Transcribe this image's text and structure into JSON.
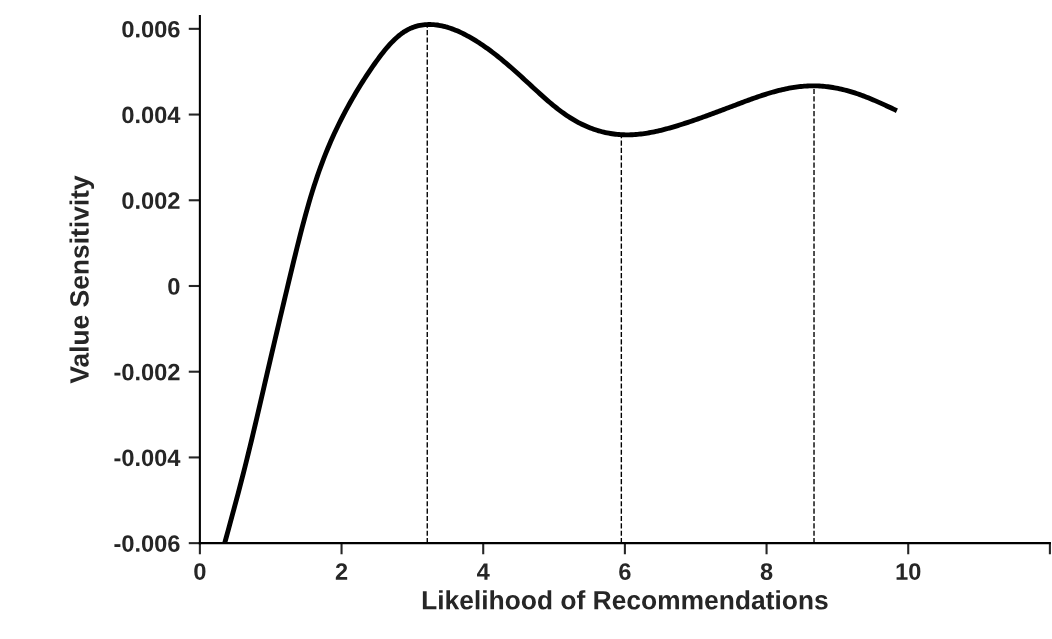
{
  "chart_data": {
    "type": "line",
    "xlabel": "Likelihood of Recommendations",
    "ylabel": "Value Sensitivity",
    "x": [
      0.35,
      0.67,
      0.955,
      1.24,
      1.55,
      2.03,
      2.41,
      2.84,
      3.21,
      3.75,
      4.46,
      5.16,
      5.95,
      6.8,
      7.51,
      8.22,
      8.67,
      9.39,
      9.84
    ],
    "series": [
      {
        "color": "#000000",
        "values": [
          -0.006,
          -0.004,
          -0.002,
          0.0,
          0.002,
          0.004,
          0.00505,
          0.00588,
          0.0061,
          0.00586,
          0.005,
          0.004,
          0.00353,
          0.00377,
          0.00419,
          0.00458,
          0.00467,
          0.00442,
          0.00409
        ]
      }
    ],
    "xlim": [
      0,
      12
    ],
    "xticks": [
      0,
      2,
      4,
      6,
      8,
      10,
      {
        "value": 12,
        "label": null
      }
    ],
    "ylim": [
      -0.006,
      0.0063
    ],
    "yticks": [
      -0.006,
      -0.004,
      -0.002,
      0,
      0.002,
      0.004,
      0.006
    ],
    "ref_lines": [
      {
        "axis": "x",
        "value": 3.21,
        "color": "#000000",
        "line_style": "dashed"
      },
      {
        "axis": "x",
        "value": 5.95,
        "color": "#000000",
        "line_style": "dashed"
      },
      {
        "axis": "x",
        "value": 8.67,
        "color": "#000000",
        "line_style": "dashed"
      }
    ],
    "grid": false,
    "legend": false,
    "marker": "none",
    "line_style": "solid"
  }
}
